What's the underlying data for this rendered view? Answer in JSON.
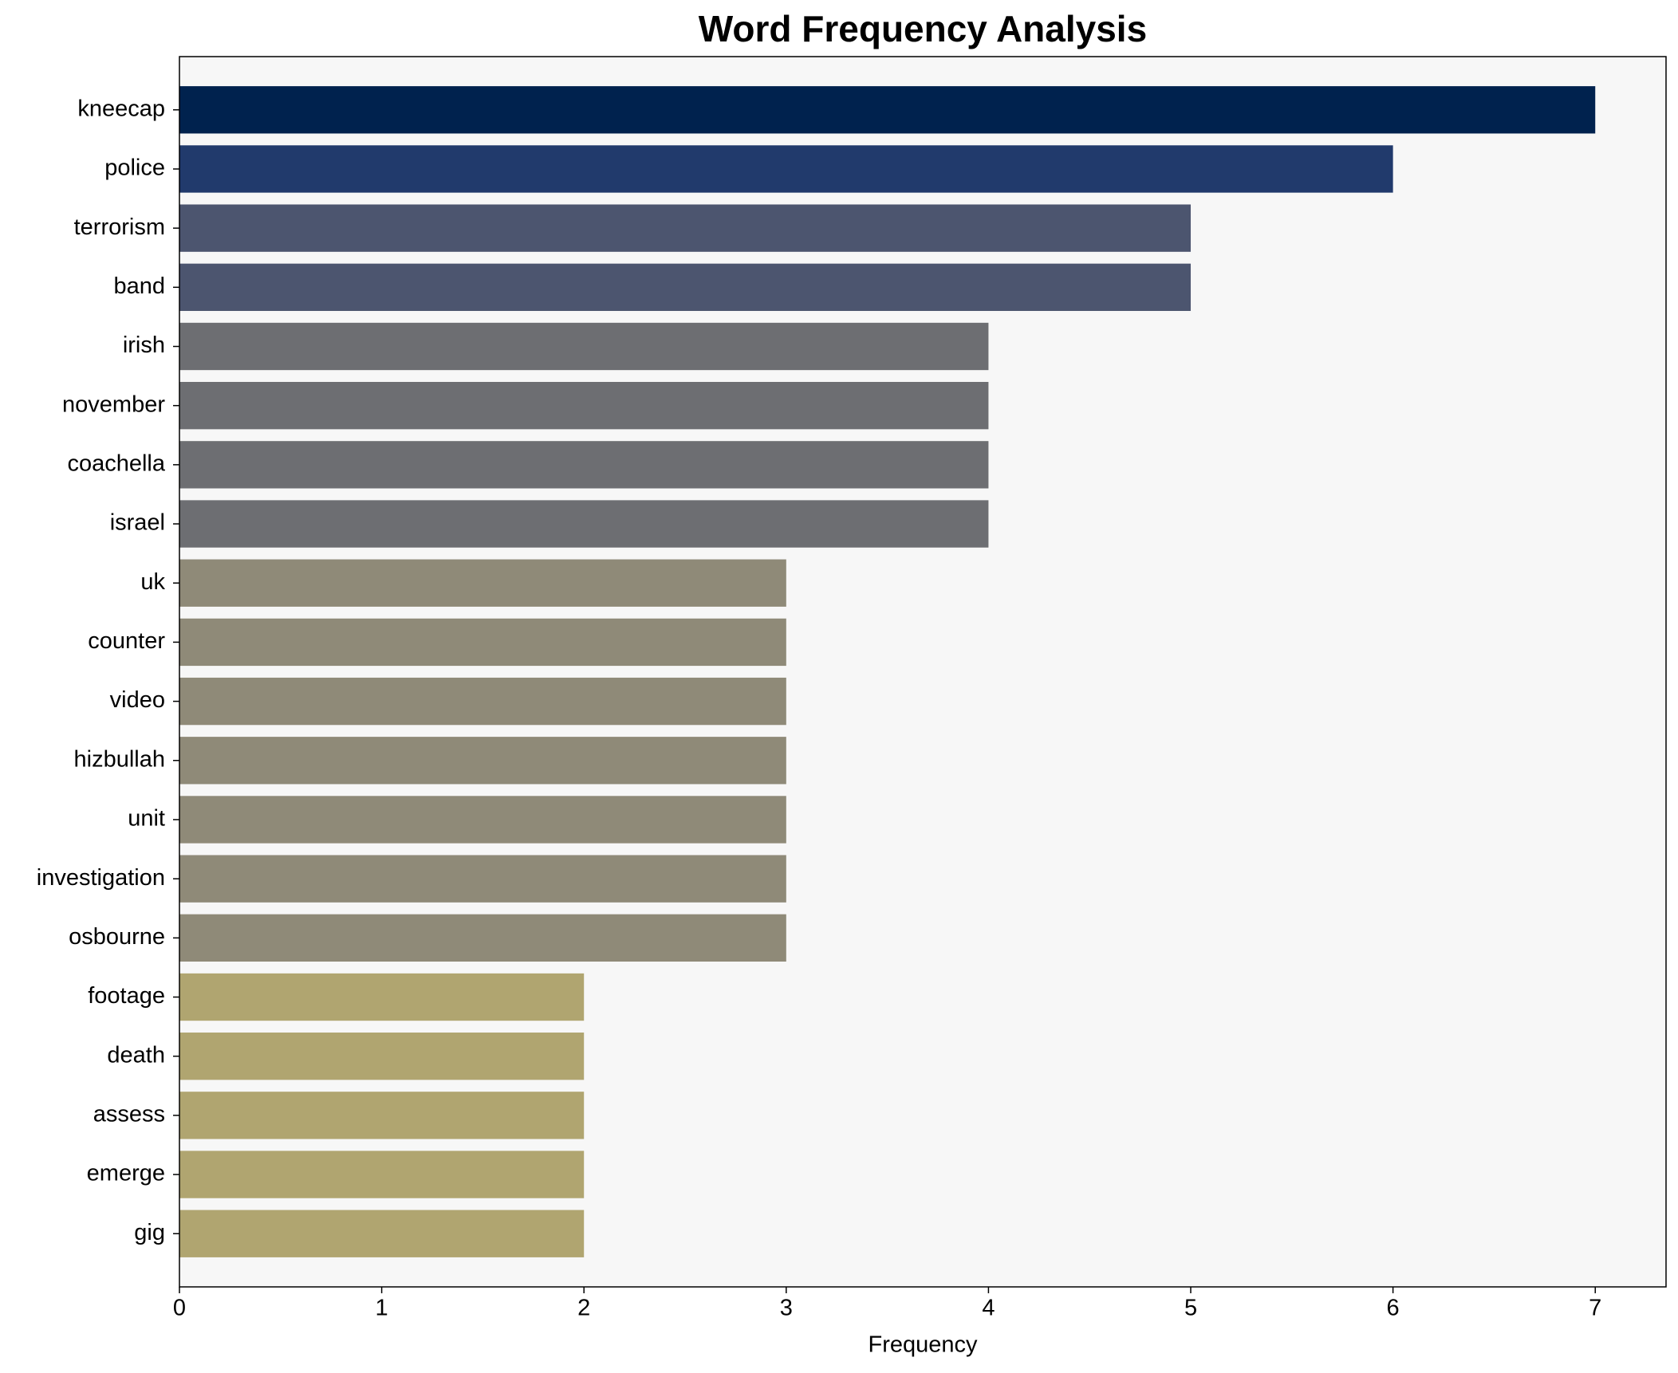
{
  "chart_data": {
    "type": "bar",
    "orientation": "horizontal",
    "title": "Word Frequency Analysis",
    "xlabel": "Frequency",
    "categories": [
      "kneecap",
      "police",
      "terrorism",
      "band",
      "irish",
      "november",
      "coachella",
      "israel",
      "uk",
      "counter",
      "video",
      "hizbullah",
      "unit",
      "investigation",
      "osbourne",
      "footage",
      "death",
      "assess",
      "emerge",
      "gig"
    ],
    "values": [
      7,
      6,
      5,
      5,
      4,
      4,
      4,
      4,
      3,
      3,
      3,
      3,
      3,
      3,
      3,
      2,
      2,
      2,
      2,
      2
    ],
    "colors": [
      "#00224e",
      "#213a6c",
      "#4c556f",
      "#4c556f",
      "#6d6e72",
      "#6d6e72",
      "#6d6e72",
      "#6d6e72",
      "#8f8a78",
      "#8f8a78",
      "#8f8a78",
      "#8f8a78",
      "#8f8a78",
      "#8f8a78",
      "#8f8a78",
      "#b0a570",
      "#b0a570",
      "#b0a570",
      "#b0a570",
      "#b0a570"
    ],
    "xlim": [
      0,
      7.35
    ],
    "xticks": [
      0,
      1,
      2,
      3,
      4,
      5,
      6,
      7
    ],
    "background": "#f7f7f7"
  }
}
